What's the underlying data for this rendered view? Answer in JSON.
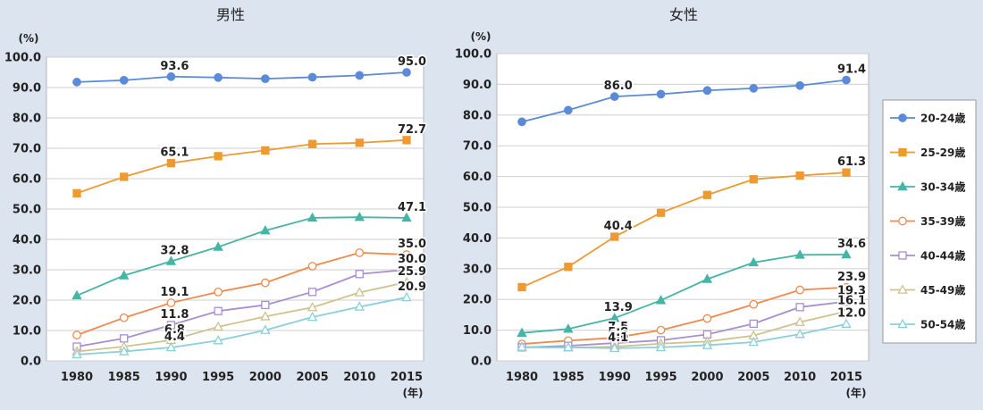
{
  "chart_data": [
    {
      "type": "line",
      "title": "男性",
      "ylabel": "(%)",
      "xlabel": "(年)",
      "ylim": [
        0,
        100
      ],
      "y_ticks": [
        "0.0",
        "10.0",
        "20.0",
        "30.0",
        "40.0",
        "50.0",
        "60.0",
        "70.0",
        "80.0",
        "90.0",
        "100.0"
      ],
      "categories": [
        "1980",
        "1985",
        "1990",
        "1995",
        "2000",
        "2005",
        "2010",
        "2015"
      ],
      "grid": true,
      "series": [
        {
          "name": "20-24歳",
          "values": [
            91.8,
            92.4,
            93.6,
            93.3,
            92.9,
            93.4,
            94.0,
            95.0
          ],
          "labels": [
            null,
            null,
            "93.6",
            null,
            null,
            null,
            null,
            "95.0"
          ]
        },
        {
          "name": "25-29歳",
          "values": [
            55.2,
            60.6,
            65.1,
            67.4,
            69.3,
            71.4,
            71.8,
            72.7
          ],
          "labels": [
            null,
            null,
            "65.1",
            null,
            null,
            null,
            null,
            "72.7"
          ]
        },
        {
          "name": "30-34歳",
          "values": [
            21.5,
            28.1,
            32.8,
            37.5,
            42.9,
            47.1,
            47.3,
            47.1
          ],
          "labels": [
            null,
            null,
            "32.8",
            null,
            null,
            null,
            null,
            "47.1"
          ]
        },
        {
          "name": "35-39歳",
          "values": [
            8.5,
            14.2,
            19.1,
            22.7,
            25.7,
            31.2,
            35.6,
            35.0
          ],
          "labels": [
            null,
            null,
            "19.1",
            null,
            null,
            null,
            null,
            "35.0"
          ]
        },
        {
          "name": "40-44歳",
          "values": [
            4.7,
            7.4,
            11.8,
            16.4,
            18.4,
            22.7,
            28.6,
            30.0
          ],
          "labels": [
            null,
            null,
            "11.8",
            null,
            null,
            null,
            null,
            "30.0"
          ]
        },
        {
          "name": "45-49歳",
          "values": [
            3.1,
            4.7,
            6.8,
            11.2,
            14.6,
            17.6,
            22.5,
            25.9
          ],
          "labels": [
            null,
            null,
            "6.8",
            null,
            null,
            null,
            null,
            "25.9"
          ]
        },
        {
          "name": "50-54歳",
          "values": [
            2.1,
            3.1,
            4.4,
            6.7,
            10.1,
            14.4,
            17.8,
            20.9
          ],
          "labels": [
            null,
            null,
            "4.4",
            null,
            null,
            null,
            null,
            "20.9"
          ]
        }
      ]
    },
    {
      "type": "line",
      "title": "女性",
      "ylabel": "(%)",
      "xlabel": "(年)",
      "ylim": [
        0,
        100
      ],
      "y_ticks": [
        "0.0",
        "10.0",
        "20.0",
        "30.0",
        "40.0",
        "50.0",
        "60.0",
        "70.0",
        "80.0",
        "90.0",
        "100.0"
      ],
      "categories": [
        "1980",
        "1985",
        "1990",
        "1995",
        "2000",
        "2005",
        "2010",
        "2015"
      ],
      "grid": true,
      "series": [
        {
          "name": "20-24歳",
          "values": [
            77.8,
            81.6,
            86.0,
            86.8,
            88.0,
            88.7,
            89.6,
            91.4
          ],
          "labels": [
            null,
            null,
            "86.0",
            null,
            null,
            null,
            null,
            "91.4"
          ]
        },
        {
          "name": "25-29歳",
          "values": [
            24.0,
            30.6,
            40.4,
            48.2,
            54.0,
            59.1,
            60.3,
            61.3
          ],
          "labels": [
            null,
            null,
            "40.4",
            null,
            null,
            null,
            null,
            "61.3"
          ]
        },
        {
          "name": "30-34歳",
          "values": [
            9.1,
            10.4,
            13.9,
            19.7,
            26.6,
            32.0,
            34.5,
            34.6
          ],
          "labels": [
            null,
            null,
            "13.9",
            null,
            null,
            null,
            null,
            "34.6"
          ]
        },
        {
          "name": "35-39歳",
          "values": [
            5.5,
            6.6,
            7.5,
            10.0,
            13.8,
            18.4,
            23.1,
            23.9
          ],
          "labels": [
            null,
            null,
            "7.5",
            null,
            null,
            null,
            null,
            "23.9"
          ]
        },
        {
          "name": "40-44歳",
          "values": [
            4.4,
            4.9,
            5.8,
            6.7,
            8.6,
            12.1,
            17.5,
            19.3
          ],
          "labels": [
            null,
            null,
            "5.8",
            null,
            null,
            null,
            null,
            "19.3"
          ]
        },
        {
          "name": "45-49歳",
          "values": [
            4.4,
            4.3,
            4.6,
            5.6,
            6.3,
            8.2,
            12.6,
            16.1
          ],
          "labels": [
            null,
            null,
            "4.6",
            null,
            null,
            null,
            null,
            "16.1"
          ]
        },
        {
          "name": "50-54歳",
          "values": [
            4.5,
            4.4,
            4.1,
            4.4,
            5.1,
            6.1,
            8.7,
            12.0
          ],
          "labels": [
            null,
            null,
            "4.1",
            null,
            null,
            null,
            null,
            "12.0"
          ]
        }
      ]
    }
  ],
  "legend": {
    "placement": "right",
    "items": [
      {
        "label": "20-24歳",
        "color": "#5b8ad9",
        "marker": "circle-filled"
      },
      {
        "label": "25-29歳",
        "color": "#ee9a2f",
        "marker": "square-filled"
      },
      {
        "label": "30-34歳",
        "color": "#45b5a5",
        "marker": "triangle-filled"
      },
      {
        "label": "35-39歳",
        "color": "#f08a4b",
        "marker": "circle-open"
      },
      {
        "label": "40-44歳",
        "color": "#a98ed3",
        "marker": "square-open"
      },
      {
        "label": "45-49歳",
        "color": "#cfc28e",
        "marker": "triangle-open"
      },
      {
        "label": "50-54歳",
        "color": "#8ad0dc",
        "marker": "triangle-open"
      }
    ]
  }
}
